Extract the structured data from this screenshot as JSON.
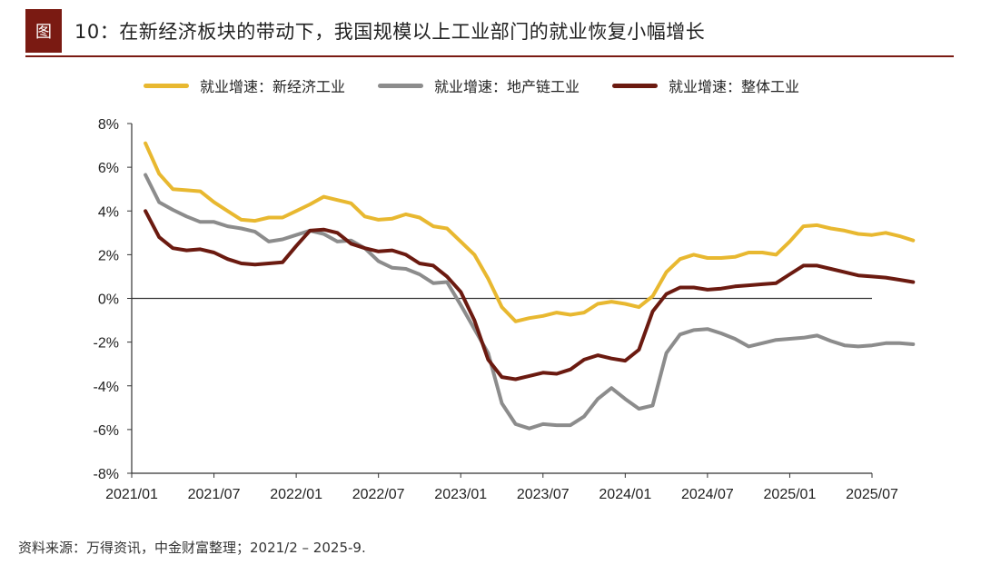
{
  "figure": {
    "tag": "图",
    "title": "10：在新经济板块的带动下，我国规模以上工业部门的就业恢复小幅增长",
    "source": "资料来源：万得资讯，中金财富整理；2021/2 – 2025-9."
  },
  "chart_data": {
    "type": "line",
    "title": "",
    "xlabel": "",
    "ylabel": "",
    "ylim": [
      -8,
      8
    ],
    "y_ticks": [
      -8,
      -6,
      -4,
      -2,
      0,
      2,
      4,
      6,
      8
    ],
    "y_tick_labels": [
      "-8%",
      "-6%",
      "-4%",
      "-2%",
      "0%",
      "2%",
      "4%",
      "6%",
      "8%"
    ],
    "x_tick_labels": [
      "2021/01",
      "2021/07",
      "2022/01",
      "2022/07",
      "2023/01",
      "2023/07",
      "2024/01",
      "2024/07",
      "2025/01",
      "2025/07"
    ],
    "x_start": "2021/02",
    "grid": false,
    "legend_position": "top",
    "series": [
      {
        "name": "就业增速：新经济工业",
        "color": "#e8b830",
        "values": [
          7.1,
          5.7,
          5.0,
          4.95,
          4.9,
          4.4,
          4.0,
          3.6,
          3.55,
          3.7,
          3.7,
          4.0,
          4.3,
          4.65,
          4.5,
          4.35,
          3.75,
          3.6,
          3.65,
          3.85,
          3.7,
          3.3,
          3.2,
          2.6,
          2.0,
          0.9,
          -0.4,
          -1.05,
          -0.9,
          -0.8,
          -0.65,
          -0.75,
          -0.65,
          -0.25,
          -0.15,
          -0.25,
          -0.4,
          0.1,
          1.2,
          1.8,
          2.0,
          1.85,
          1.85,
          1.9,
          2.1,
          2.1,
          2.0,
          2.6,
          3.3,
          3.35,
          3.2,
          3.1,
          2.95,
          2.9,
          3.0,
          2.85,
          2.65
        ]
      },
      {
        "name": "就业增速：地产链工业",
        "color": "#8c8c8c",
        "values": [
          5.65,
          4.4,
          4.05,
          3.75,
          3.5,
          3.5,
          3.3,
          3.2,
          3.05,
          2.6,
          2.7,
          2.9,
          3.1,
          2.95,
          2.6,
          2.65,
          2.3,
          1.7,
          1.4,
          1.35,
          1.1,
          0.7,
          0.75,
          -0.3,
          -1.4,
          -2.5,
          -4.8,
          -5.75,
          -5.95,
          -5.75,
          -5.8,
          -5.8,
          -5.4,
          -4.6,
          -4.1,
          -4.6,
          -5.05,
          -4.9,
          -2.5,
          -1.65,
          -1.45,
          -1.4,
          -1.6,
          -1.85,
          -2.2,
          -2.05,
          -1.9,
          -1.85,
          -1.8,
          -1.7,
          -1.95,
          -2.15,
          -2.2,
          -2.15,
          -2.05,
          -2.05,
          -2.1
        ]
      },
      {
        "name": "就业增速：整体工业",
        "color": "#6b1a10",
        "values": [
          4.0,
          2.8,
          2.3,
          2.2,
          2.25,
          2.1,
          1.8,
          1.6,
          1.55,
          1.6,
          1.65,
          2.4,
          3.1,
          3.15,
          3.0,
          2.5,
          2.3,
          2.15,
          2.2,
          2.0,
          1.6,
          1.5,
          1.0,
          0.3,
          -1.0,
          -2.8,
          -3.6,
          -3.7,
          -3.55,
          -3.4,
          -3.45,
          -3.25,
          -2.8,
          -2.6,
          -2.75,
          -2.85,
          -2.35,
          -0.6,
          0.2,
          0.5,
          0.5,
          0.4,
          0.45,
          0.55,
          0.6,
          0.65,
          0.7,
          1.1,
          1.5,
          1.5,
          1.35,
          1.2,
          1.05,
          1.0,
          0.95,
          0.85,
          0.75
        ]
      }
    ]
  }
}
